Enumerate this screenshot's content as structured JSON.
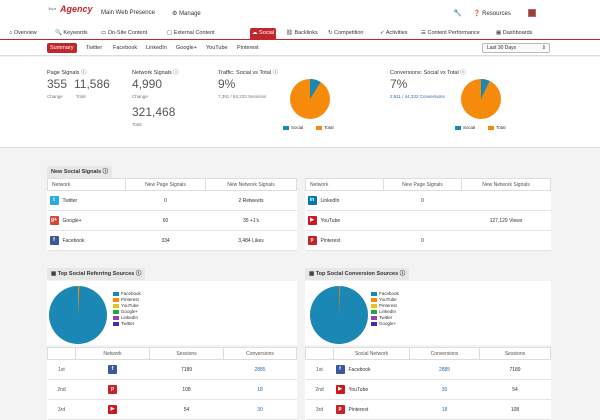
{
  "header": {
    "logo_small": "Your",
    "logo_big": "Agency",
    "site": "Main Web Presence",
    "manage": "Manage",
    "resources": "Resources",
    "dashboards": "Dashboards"
  },
  "nav": [
    "Overview",
    "Keywords",
    "On-Site Content",
    "External Content",
    "Social",
    "Backlinks",
    "Competition",
    "Activities",
    "Content Performance",
    "Dashboards"
  ],
  "subnav": [
    "Summary",
    "Twitter",
    "Facebook",
    "LinkedIn",
    "Google+",
    "YouTube",
    "Pinterest"
  ],
  "date_range": "Last 30 Days",
  "metrics": {
    "page_signals": {
      "label": "Page Signals",
      "change": "355",
      "change_label": "Change",
      "total": "11,586",
      "total_label": "Total"
    },
    "network_signals": {
      "label": "Network Signals",
      "change": "4,990",
      "change_label": "Change",
      "total": "321,468",
      "total_label": "Total"
    },
    "traffic": {
      "label": "Traffic: Social vs Total",
      "pct": "9%",
      "detail": "7,391 / 84,233 Sessions"
    },
    "conversions": {
      "label": "Conversions: Social vs Total",
      "pct": "7%",
      "detail": "2,911 / 44,332 Conversions"
    },
    "legend": [
      "Social",
      "Total"
    ]
  },
  "new_signals": {
    "title": "New Social Signals",
    "headers": [
      "Network",
      "New Page Signals",
      "New Network Signals"
    ],
    "left": [
      [
        "Twitter",
        "0",
        "2 Retweets"
      ],
      [
        "Google+",
        "60",
        "35 +1's"
      ],
      [
        "Facebook",
        "334",
        "3,484 Likes"
      ]
    ],
    "right": [
      [
        "LinkedIn",
        "0",
        ""
      ],
      [
        "YouTube",
        "",
        "127,129 Views"
      ],
      [
        "Pinterest",
        "0",
        ""
      ]
    ]
  },
  "referring": {
    "title": "Top Social Referring Sources",
    "legend": [
      "Facebook",
      "Pinterest",
      "YouTube",
      "Google+",
      "LinkedIn",
      "Twitter"
    ],
    "headers": [
      "Network",
      "Sessions",
      "Conversions"
    ],
    "rows": [
      [
        "1st",
        "7189",
        "2885"
      ],
      [
        "2nd",
        "108",
        "18"
      ],
      [
        "3rd",
        "54",
        "30"
      ]
    ]
  },
  "conversion": {
    "title": "Top Social Conversion Sources",
    "legend": [
      "Facebook",
      "YouTube",
      "Pinterest",
      "LinkedIn",
      "Twitter",
      "Google+"
    ],
    "headers": [
      "Social Network",
      "Conversions",
      "Sessions"
    ],
    "rows": [
      [
        "1st",
        "Facebook",
        "2885",
        "7189"
      ],
      [
        "2nd",
        "YouTube",
        "30",
        "54"
      ],
      [
        "3rd",
        "Pinterest",
        "18",
        "108"
      ]
    ]
  },
  "colors": {
    "brand": "#c0272d",
    "social": "#1a87b5",
    "total": "#f58a0b",
    "link": "#2a6db4"
  }
}
